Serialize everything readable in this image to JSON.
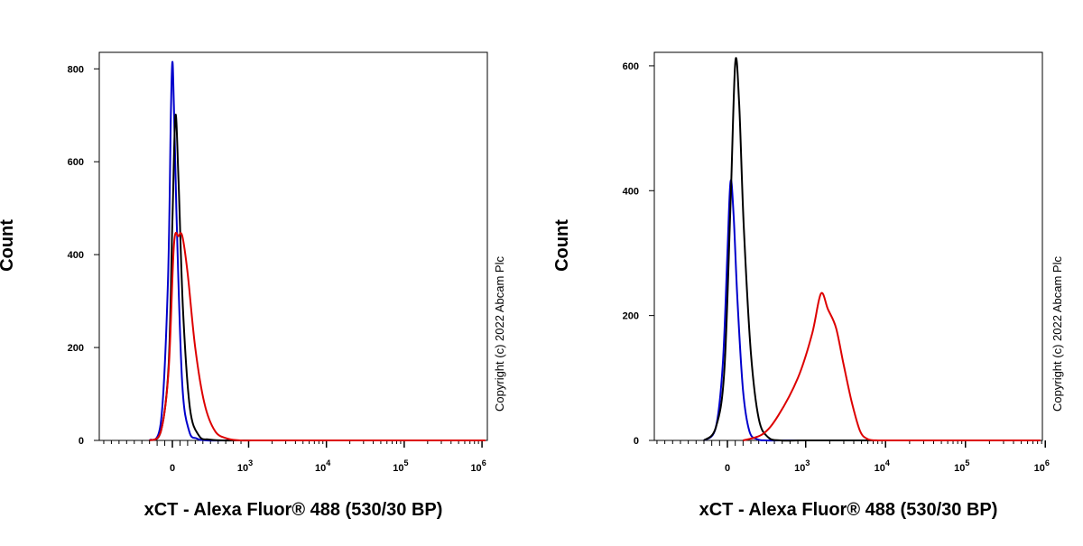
{
  "chart_data": [
    {
      "type": "line",
      "title": "",
      "xlabel": "xCT - Alexa Fluor® 488 (530/30 BP)",
      "ylabel": "Count",
      "copyright": "Copyright (c) 2022 Abcam Plc",
      "x_scale": "biexponential",
      "y_ticks": [
        0,
        200,
        400,
        600,
        800
      ],
      "ylim": [
        0,
        820
      ],
      "x_ticks": [
        {
          "value": 0,
          "base": "0",
          "exp": ""
        },
        {
          "value": 1000,
          "base": "10",
          "exp": "3"
        },
        {
          "value": 10000,
          "base": "10",
          "exp": "4"
        },
        {
          "value": 100000,
          "base": "10",
          "exp": "5"
        },
        {
          "value": 1000000,
          "base": "10",
          "exp": "6"
        }
      ],
      "series": [
        {
          "color": "#0000cc",
          "x": [
            -300,
            -150,
            -60,
            -20,
            0,
            20,
            60,
            130,
            220,
            320,
            450,
            700,
            1000
          ],
          "y": [
            0,
            40,
            330,
            700,
            815,
            720,
            450,
            120,
            20,
            4,
            0,
            0,
            0
          ]
        },
        {
          "color": "#000000",
          "x": [
            -300,
            -150,
            -50,
            0,
            40,
            80,
            140,
            230,
            350,
            480,
            650,
            900,
            1200
          ],
          "y": [
            0,
            20,
            160,
            470,
            700,
            560,
            280,
            70,
            10,
            2,
            0,
            0,
            0
          ]
        },
        {
          "color": "#dd0000",
          "x": [
            -300,
            -150,
            -50,
            20,
            80,
            130,
            200,
            300,
            420,
            560,
            720,
            900,
            1200
          ],
          "y": [
            0,
            20,
            150,
            420,
            440,
            440,
            360,
            200,
            80,
            20,
            4,
            0,
            0
          ]
        }
      ]
    },
    {
      "type": "line",
      "title": "",
      "xlabel": "xCT - Alexa Fluor® 488 (530/30 BP)",
      "ylabel": "Count",
      "copyright": "Copyright (c) 2022 Abcam Plc",
      "x_scale": "biexponential",
      "y_ticks": [
        0,
        200,
        400,
        600
      ],
      "ylim": [
        0,
        610
      ],
      "x_ticks": [
        {
          "value": 0,
          "base": "0",
          "exp": ""
        },
        {
          "value": 1000,
          "base": "10",
          "exp": "3"
        },
        {
          "value": 10000,
          "base": "10",
          "exp": "4"
        },
        {
          "value": 100000,
          "base": "10",
          "exp": "5"
        },
        {
          "value": 1000000,
          "base": "10",
          "exp": "6"
        }
      ],
      "series": [
        {
          "color": "#0000cc",
          "x": [
            -300,
            -150,
            -60,
            0,
            40,
            80,
            130,
            200,
            280,
            380,
            500,
            700
          ],
          "y": [
            0,
            20,
            120,
            300,
            415,
            360,
            220,
            80,
            15,
            2,
            0,
            0
          ]
        },
        {
          "color": "#000000",
          "x": [
            -300,
            -150,
            -40,
            40,
            100,
            150,
            210,
            300,
            400,
            520,
            680,
            900
          ],
          "y": [
            0,
            20,
            110,
            380,
            605,
            540,
            340,
            140,
            35,
            5,
            0,
            0
          ]
        },
        {
          "color": "#dd0000",
          "x": [
            200,
            450,
            650,
            900,
            1200,
            1550,
            1900,
            2400,
            3000,
            3800,
            4800,
            6000,
            8000
          ],
          "y": [
            0,
            10,
            40,
            100,
            170,
            235,
            210,
            180,
            120,
            60,
            15,
            2,
            0
          ]
        }
      ]
    }
  ]
}
